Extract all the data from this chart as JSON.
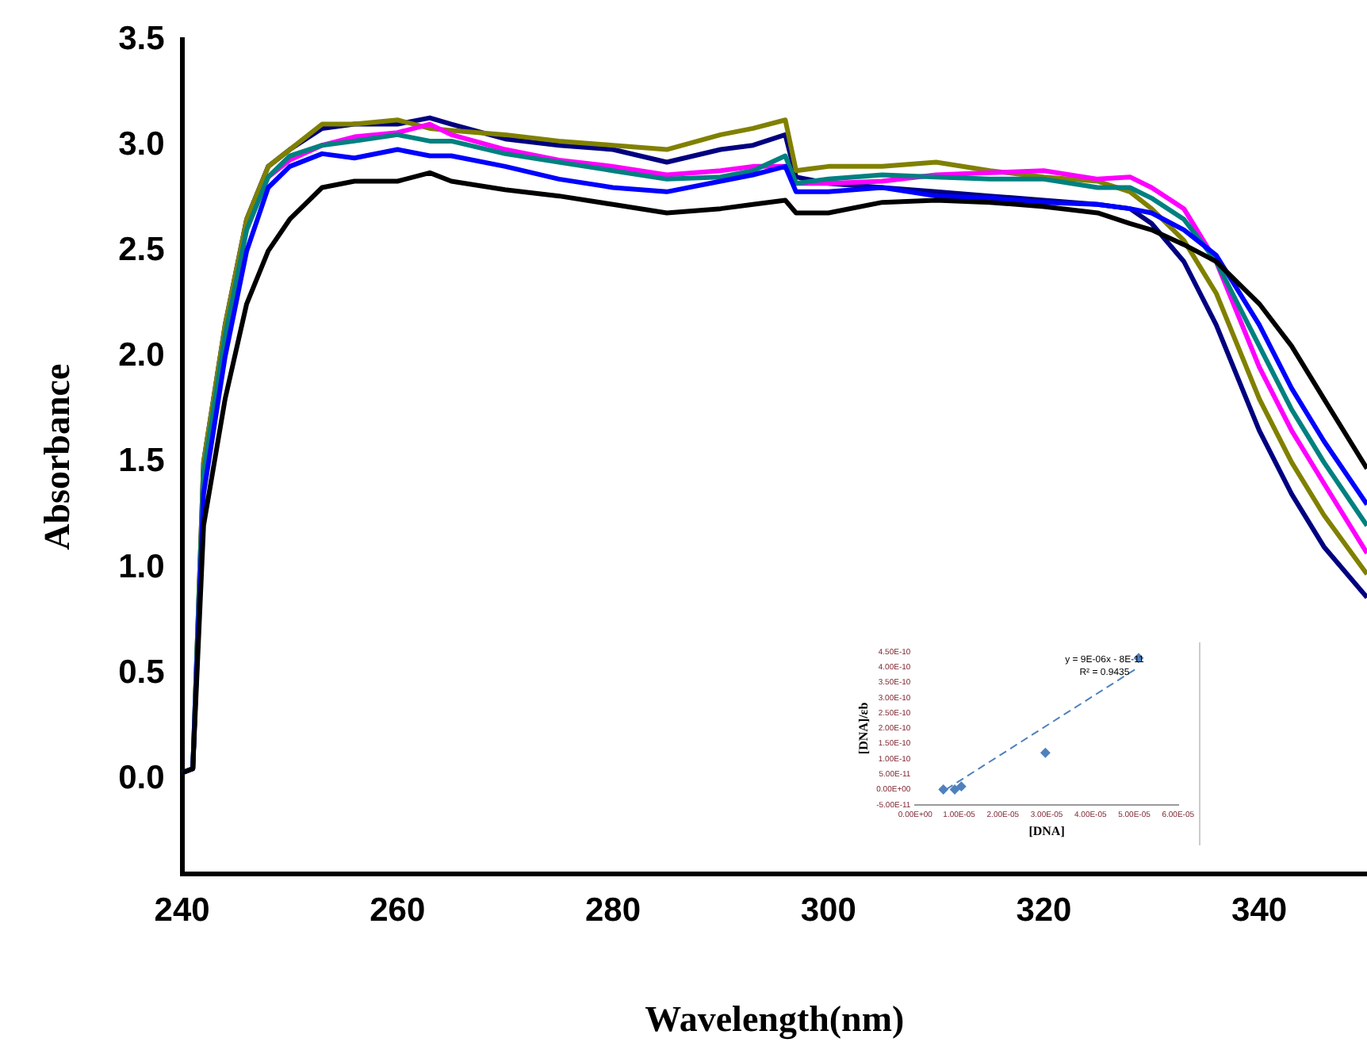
{
  "chart_data": [
    {
      "type": "line",
      "xlabel": "Wavelength(nm)",
      "ylabel": "Absorbance",
      "x": [
        240,
        241,
        242,
        244,
        246,
        248,
        250,
        253,
        256,
        260,
        263,
        265,
        270,
        275,
        280,
        285,
        290,
        293,
        296,
        297,
        300,
        305,
        310,
        315,
        320,
        325,
        328,
        330,
        333,
        336,
        340,
        343,
        346,
        350
      ],
      "series": [
        {
          "color": "#000000",
          "values": [
            0.03,
            0.05,
            1.2,
            1.8,
            2.25,
            2.5,
            2.65,
            2.8,
            2.83,
            2.83,
            2.87,
            2.83,
            2.79,
            2.76,
            2.72,
            2.68,
            2.7,
            2.72,
            2.74,
            2.68,
            2.68,
            2.73,
            2.74,
            2.73,
            2.71,
            2.68,
            2.63,
            2.6,
            2.53,
            2.45,
            2.25,
            2.05,
            1.8,
            1.47
          ]
        },
        {
          "color": "#0000ff",
          "values": [
            0.03,
            0.05,
            1.35,
            2.0,
            2.5,
            2.8,
            2.9,
            2.96,
            2.94,
            2.98,
            2.95,
            2.95,
            2.9,
            2.84,
            2.8,
            2.78,
            2.83,
            2.86,
            2.9,
            2.78,
            2.78,
            2.8,
            2.76,
            2.75,
            2.73,
            2.72,
            2.7,
            2.68,
            2.6,
            2.48,
            2.15,
            1.85,
            1.6,
            1.3
          ]
        },
        {
          "color": "#008080",
          "values": [
            0.03,
            0.05,
            1.45,
            2.1,
            2.6,
            2.85,
            2.95,
            3.0,
            3.02,
            3.05,
            3.02,
            3.02,
            2.96,
            2.92,
            2.88,
            2.84,
            2.85,
            2.88,
            2.95,
            2.82,
            2.84,
            2.86,
            2.85,
            2.84,
            2.84,
            2.8,
            2.8,
            2.75,
            2.65,
            2.45,
            2.05,
            1.75,
            1.5,
            1.2
          ]
        },
        {
          "color": "#ff00ff",
          "values": [
            null,
            null,
            null,
            null,
            null,
            2.85,
            2.93,
            3.0,
            3.04,
            3.06,
            3.1,
            3.05,
            2.98,
            2.93,
            2.9,
            2.86,
            2.88,
            2.9,
            2.9,
            2.82,
            2.82,
            2.83,
            2.86,
            2.87,
            2.88,
            2.84,
            2.85,
            2.8,
            2.7,
            2.45,
            1.95,
            1.65,
            1.4,
            1.07
          ]
        },
        {
          "color": "#808000",
          "values": [
            0.03,
            0.05,
            1.5,
            2.15,
            2.65,
            2.9,
            2.98,
            3.1,
            3.1,
            3.12,
            3.08,
            3.07,
            3.05,
            3.02,
            3.0,
            2.98,
            3.05,
            3.08,
            3.12,
            2.88,
            2.9,
            2.9,
            2.92,
            2.88,
            2.85,
            2.83,
            2.78,
            2.7,
            2.55,
            2.3,
            1.8,
            1.5,
            1.25,
            0.97
          ]
        },
        {
          "color": "#000080",
          "values": [
            0.03,
            0.05,
            1.5,
            2.15,
            2.65,
            2.9,
            2.98,
            3.08,
            3.1,
            3.1,
            3.13,
            3.1,
            3.03,
            3.0,
            2.98,
            2.92,
            2.98,
            3.0,
            3.05,
            2.85,
            2.82,
            2.8,
            2.78,
            2.76,
            2.74,
            2.72,
            2.7,
            2.63,
            2.45,
            2.15,
            1.65,
            1.35,
            1.1,
            0.86
          ]
        }
      ],
      "xlim": [
        240,
        350
      ],
      "xticks": [
        240,
        260,
        280,
        300,
        320,
        340
      ],
      "ylim": [
        -0.45,
        3.5
      ],
      "yticks": [
        {
          "value": 0,
          "label": "0.0"
        },
        {
          "value": 0.5,
          "label": "0.5"
        },
        {
          "value": 1,
          "label": "1.0"
        },
        {
          "value": 1.5,
          "label": "1.5"
        },
        {
          "value": 2,
          "label": "2.0"
        },
        {
          "value": 2.5,
          "label": "2.5"
        },
        {
          "value": 3,
          "label": "3.0"
        },
        {
          "value": 3.5,
          "label": "3.5"
        }
      ],
      "grid": false,
      "legend": false,
      "marker": "none",
      "line_style": "solid"
    },
    {
      "type": "scatter",
      "xlabel": "[DNA]",
      "ylabel": "[DNA]/εb",
      "annotations": [
        "y = 9E-06x - 8E-11",
        "R² = 0.9435"
      ],
      "series": [
        {
          "color": "#4f81bd",
          "x": [
            6.4e-06,
            9e-06,
            1e-05,
            1.05e-05,
            2.97e-05,
            5.1e-05
          ],
          "values": [
            0,
            0,
            null,
            1e-11,
            1.2e-10,
            4.3e-10
          ]
        },
        {
          "type": "line",
          "color": "#4f81bd",
          "line_style": "dashed",
          "marker": "none",
          "x": [
            7e-06,
            5.1e-05
          ],
          "values": [
            0,
            4e-10
          ]
        }
      ],
      "xlim": [
        0,
        6e-05
      ],
      "xticks": [
        {
          "value": 0,
          "label": "0.00E+00"
        },
        {
          "value": 1e-05,
          "label": "1.00E-05"
        },
        {
          "value": 2e-05,
          "label": "2.00E-05"
        },
        {
          "value": 3e-05,
          "label": "3.00E-05"
        },
        {
          "value": 4e-05,
          "label": "4.00E-05"
        },
        {
          "value": 5e-05,
          "label": "5.00E-05"
        },
        {
          "value": 6e-05,
          "label": "6.00E-05"
        }
      ],
      "ylim": [
        -5e-11,
        4.5e-10
      ],
      "yticks": [
        {
          "value": -5e-11,
          "label": "-5.00E-11"
        },
        {
          "value": 0,
          "label": "0.00E+00"
        },
        {
          "value": 5e-11,
          "label": "5.00E-11"
        },
        {
          "value": 1e-10,
          "label": "1.00E-10"
        },
        {
          "value": 1.5e-10,
          "label": "1.50E-10"
        },
        {
          "value": 2e-10,
          "label": "2.00E-10"
        },
        {
          "value": 2.5e-10,
          "label": "2.50E-10"
        },
        {
          "value": 3e-10,
          "label": "3.00E-10"
        },
        {
          "value": 3.5e-10,
          "label": "3.50E-10"
        },
        {
          "value": 4e-10,
          "label": "4.00E-10"
        },
        {
          "value": 4.5e-10,
          "label": "4.50E-10"
        }
      ],
      "grid": false,
      "legend": false,
      "marker": "diamond"
    }
  ]
}
